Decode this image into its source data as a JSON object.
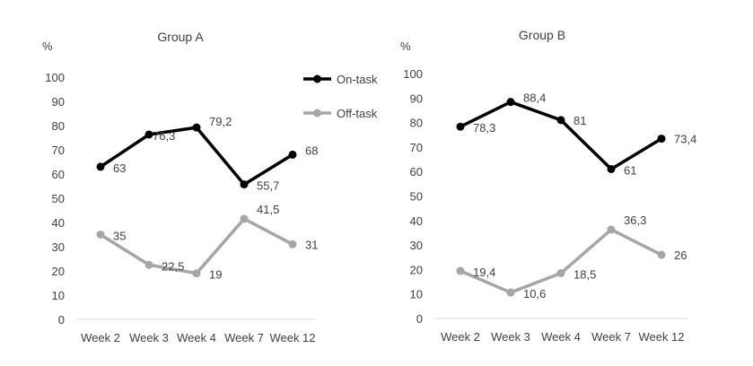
{
  "chart_data": [
    {
      "type": "line",
      "title": "Group A",
      "ylabel": "%",
      "xlabel": "",
      "categories": [
        "Week 2",
        "Week 3",
        "Week 4",
        "Week 7",
        "Week 12"
      ],
      "ylim": [
        0,
        100
      ],
      "yticks": [
        0,
        10,
        20,
        30,
        40,
        50,
        60,
        70,
        80,
        90,
        100
      ],
      "grid": false,
      "legend_position": "top-right",
      "series": [
        {
          "name": "On-task",
          "color": "#000000",
          "values": [
            63,
            76.3,
            79.2,
            55.7,
            68
          ],
          "labels": [
            "63",
            "76,3",
            "79,2",
            "55,7",
            "68"
          ]
        },
        {
          "name": "Off-task",
          "color": "#a6a6a6",
          "values": [
            35,
            22.5,
            19,
            41.5,
            31
          ],
          "labels": [
            "35",
            "22,5",
            "19",
            "41,5",
            "31"
          ]
        }
      ]
    },
    {
      "type": "line",
      "title": "Group B",
      "ylabel": "%",
      "xlabel": "",
      "categories": [
        "Week 2",
        "Week 3",
        "Week 4",
        "Week 7",
        "Week 12"
      ],
      "ylim": [
        0,
        100
      ],
      "yticks": [
        0,
        10,
        20,
        30,
        40,
        50,
        60,
        70,
        80,
        90,
        100
      ],
      "grid": false,
      "series": [
        {
          "name": "On-task",
          "color": "#000000",
          "values": [
            78.3,
            88.4,
            81,
            61,
            73.4
          ],
          "labels": [
            "78,3",
            "88,4",
            "81",
            "61",
            "73,4"
          ]
        },
        {
          "name": "Off-task",
          "color": "#a6a6a6",
          "values": [
            19.4,
            10.6,
            18.5,
            36.3,
            26
          ],
          "labels": [
            "19,4",
            "10,6",
            "18,5",
            "36,3",
            "26"
          ]
        }
      ]
    }
  ]
}
